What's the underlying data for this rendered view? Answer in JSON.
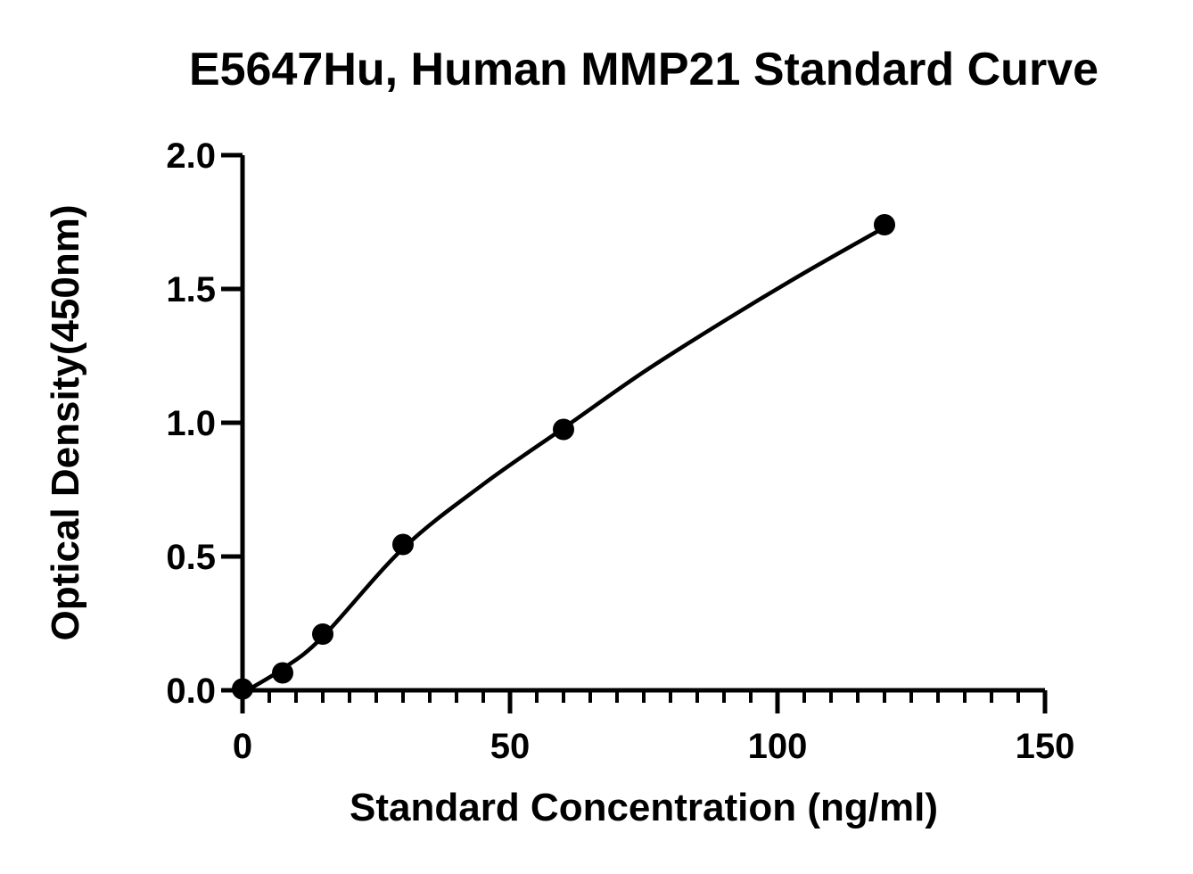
{
  "chart_data": {
    "type": "scatter",
    "title": "E5647Hu, Human MMP21 Standard Curve",
    "xlabel": "Standard Concentration (ng/ml)",
    "ylabel": "Optical Density(450nm)",
    "xlim": [
      0,
      150
    ],
    "ylim": [
      0,
      2.0
    ],
    "x_ticks": [
      "0",
      "50",
      "100",
      "150"
    ],
    "y_ticks": [
      "0.0",
      "0.5",
      "1.0",
      "1.5",
      "2.0"
    ],
    "x_minor_step": 5,
    "grid": false,
    "legend": "none",
    "series": [
      {
        "x": [
          0,
          7.5,
          15,
          30,
          60,
          120
        ],
        "y": [
          0.005,
          0.065,
          0.21,
          0.545,
          0.975,
          1.74
        ]
      }
    ],
    "fit_curve": {
      "x": [
        0,
        7.5,
        15,
        30,
        45,
        60,
        75,
        90,
        105,
        120
      ],
      "y": [
        -0.01,
        0.08,
        0.2,
        0.53,
        0.77,
        0.98,
        1.19,
        1.38,
        1.56,
        1.73
      ]
    },
    "colors": {
      "marker": "#000000",
      "line": "#000000",
      "axis": "#000000"
    }
  }
}
